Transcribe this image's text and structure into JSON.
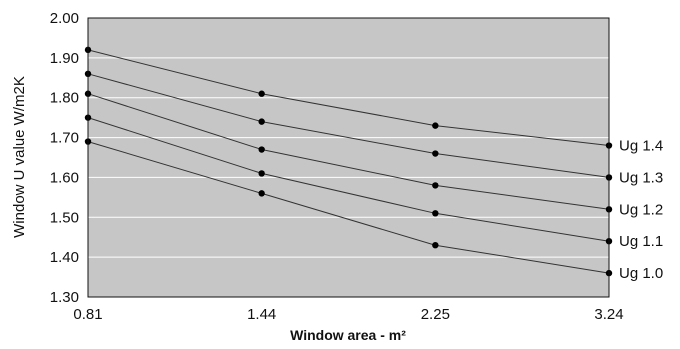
{
  "chart_data": {
    "type": "line",
    "title": "",
    "xlabel": "Window area - m²",
    "ylabel": "Window U value W/m2K",
    "x": [
      0.81,
      1.44,
      2.25,
      3.24
    ],
    "x_tick_labels": [
      "0.81",
      "1.44",
      "2.25",
      "3.24"
    ],
    "ylim": [
      1.3,
      2.0
    ],
    "y_ticks": [
      1.3,
      1.4,
      1.5,
      1.6,
      1.7,
      1.8,
      1.9,
      2.0
    ],
    "y_tick_labels": [
      "1.30",
      "1.40",
      "1.50",
      "1.60",
      "1.70",
      "1.80",
      "1.90",
      "2.00"
    ],
    "grid": "horizontal",
    "series": [
      {
        "name": "Ug 1.4",
        "values": [
          1.92,
          1.81,
          1.73,
          1.68
        ]
      },
      {
        "name": "Ug 1.3",
        "values": [
          1.86,
          1.74,
          1.66,
          1.6
        ]
      },
      {
        "name": "Ug 1.2",
        "values": [
          1.81,
          1.67,
          1.58,
          1.52
        ]
      },
      {
        "name": "Ug 1.1",
        "values": [
          1.75,
          1.61,
          1.51,
          1.44
        ]
      },
      {
        "name": "Ug 1.0",
        "values": [
          1.69,
          1.56,
          1.43,
          1.36
        ]
      }
    ],
    "colors": {
      "plot_background": "#c6c6c6",
      "gridline": "#ffffff",
      "line": "#333333",
      "marker": "#000000"
    }
  }
}
